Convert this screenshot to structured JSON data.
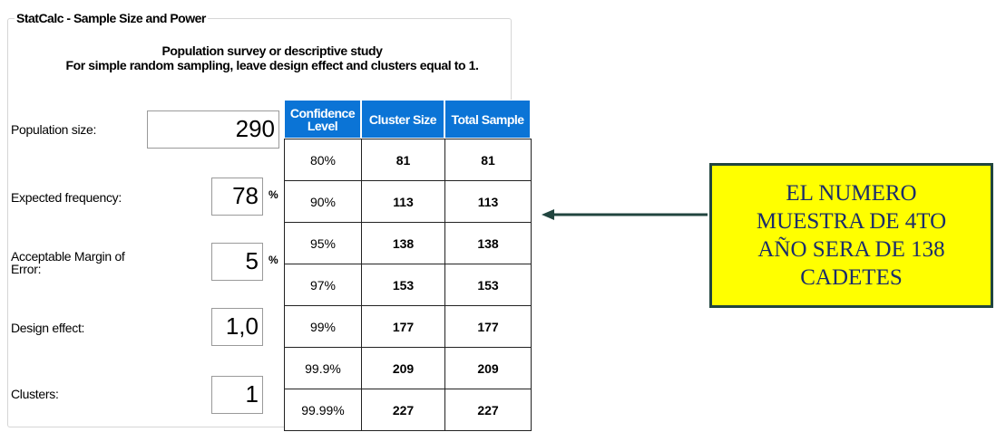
{
  "panel_title": "StatCalc - Sample Size and Power",
  "header": [
    "Population survey or descriptive study",
    "For simple random sampling, leave design effect and clusters equal to 1."
  ],
  "fields": [
    {
      "label": "Population size:",
      "value": "290"
    },
    {
      "label": "Expected frequency:",
      "value": "78",
      "unit": "%"
    },
    {
      "label": "Acceptable Margin of Error:",
      "value": "5",
      "unit": "%"
    },
    {
      "label": "Design effect:",
      "value": "1,0"
    },
    {
      "label": "Clusters:",
      "value": "1"
    }
  ],
  "table": {
    "columns": [
      "Confidence Level",
      "Cluster Size",
      "Total Sample"
    ],
    "rows": [
      [
        "80%",
        81,
        81
      ],
      [
        "90%",
        113,
        113
      ],
      [
        "95%",
        138,
        138
      ],
      [
        "97%",
        153,
        153
      ],
      [
        "99%",
        177,
        177
      ],
      [
        "99.9%",
        209,
        209
      ],
      [
        "99.99%",
        227,
        227
      ]
    ]
  },
  "callout": [
    "EL NUMERO",
    "MUESTRA DE 4TO",
    "AÑO SERA DE 138",
    "CADETES"
  ]
}
